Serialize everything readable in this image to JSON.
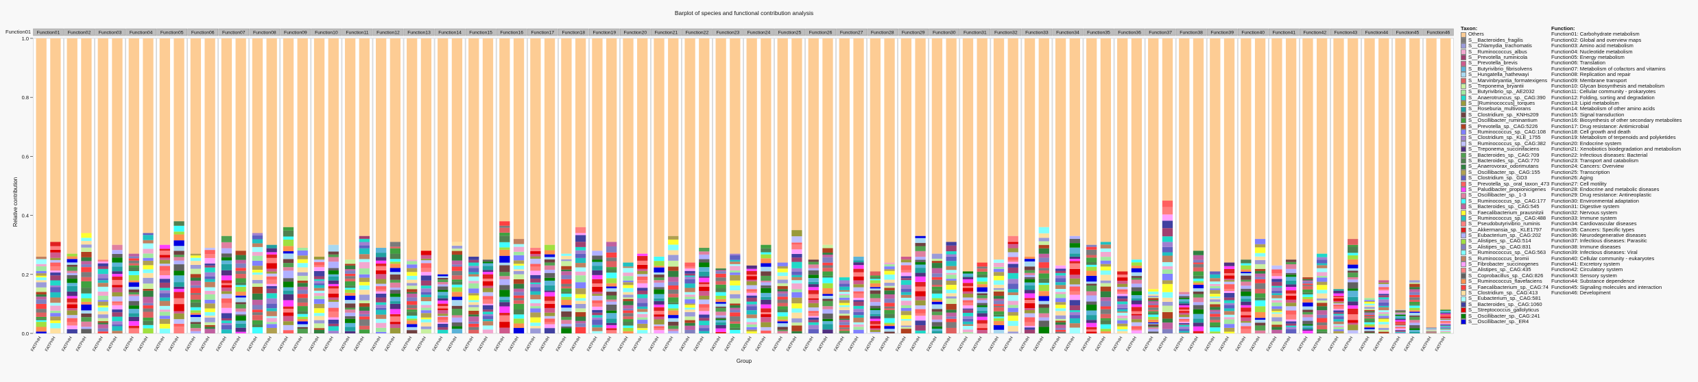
{
  "chart_data": {
    "type": "bar",
    "stacked": true,
    "title": "Barplot of species and functional contribution analysis",
    "xlabel": "Group",
    "ylabel": "Relative contribution",
    "ylim": [
      0,
      1
    ],
    "yticks": [
      "0.0",
      "0.2",
      "0.4",
      "0.6",
      "0.8",
      "1.0"
    ],
    "facet_prefix": "Function",
    "facet_first_label": "Function01",
    "group_labels": [
      "FATPHH",
      "FATPHH"
    ],
    "species_totals": [
      0.26,
      0.31,
      0.27,
      0.34,
      0.25,
      0.3,
      0.27,
      0.34,
      0.3,
      0.38,
      0.27,
      0.29,
      0.33,
      0.28,
      0.34,
      0.3,
      0.36,
      0.29,
      0.26,
      0.3,
      0.25,
      0.33,
      0.29,
      0.31,
      0.25,
      0.28,
      0.2,
      0.31,
      0.26,
      0.25,
      0.38,
      0.32,
      0.29,
      0.3,
      0.27,
      0.36,
      0.28,
      0.31,
      0.24,
      0.27,
      0.26,
      0.33,
      0.24,
      0.29,
      0.22,
      0.27,
      0.23,
      0.3,
      0.24,
      0.35,
      0.25,
      0.3,
      0.19,
      0.26,
      0.21,
      0.24,
      0.26,
      0.33,
      0.27,
      0.31,
      0.21,
      0.24,
      0.25,
      0.33,
      0.26,
      0.36,
      0.23,
      0.33,
      0.3,
      0.31,
      0.21,
      0.25,
      0.15,
      0.45,
      0.14,
      0.28,
      0.21,
      0.24,
      0.25,
      0.32,
      0.23,
      0.25,
      0.19,
      0.27,
      0.15,
      0.32,
      0.12,
      0.18,
      0.08,
      0.18,
      0.02,
      0.08,
      0.01,
      0.12,
      0.01,
      0.02
    ],
    "legend_species_title": "Taxon:",
    "legend_species": [
      "Others",
      "S__Bacteroides_fragilis",
      "S__Chlamydia_trachomatis",
      "S__Ruminococcus_albus",
      "S__Prevotella_ruminicola",
      "S__Prevotella_brevis",
      "S__Butyrivibrio_fibrisolvens",
      "S__Hungatella_hathewayi",
      "S__Marvinbryantia_formatexigens",
      "S__Treponema_bryantii",
      "S__Butyrivibrio_sp._AE2032",
      "S__Anaerotruncus_sp._CAG:390",
      "S__[Ruminococcus]_torques",
      "S__Roseburia_multivorans",
      "S__Clostridium_sp._KNHs209",
      "S__Oscillibacter_ruminantium",
      "S__Prevotella_sp._CAG:5226",
      "S__Ruminococcus_sp._CAG:108",
      "S__Clostridium_sp._KLE_1755",
      "S__Ruminococcus_sp._CAG:382",
      "S__Treponema_succinifaciens",
      "S__Bacteroides_sp._CAG:709",
      "S__Bacteroides_sp._CAG:770",
      "S__Anaerovorax_odorimutans",
      "S__Oscillibacter_sp._CAG:155",
      "S__Clostridium_sp._GD3",
      "S__Prevotella_sp._oral_taxon_473",
      "S__Paludibacter_propionicigenes",
      "S__Oscillibacter_sp._1-3",
      "S__Ruminococcus_sp._CAG:177",
      "S__Bacteroides_sp._CAG:545",
      "S__Faecalibacterium_prausnitzii",
      "S__Ruminococcus_sp._CAG:488",
      "S__Pseudobutyrivibrio_ruminis",
      "S__Akkermansia_sp._KLE1797",
      "S__Eubacterium_sp._CAG:202",
      "S__Alistipes_sp._CAG:514",
      "S__Alistipes_sp._CAG:831",
      "S__Ruminococcus_sp._CAG:563",
      "S__Ruminococcus_bromii",
      "S__Fibrobacter_succinogenes",
      "S__Alistipes_sp._CAG:435",
      "S__Coprobacillus_sp._CAG:826",
      "S__Ruminococcus_flavefaciens",
      "S__Faecalibacterium_sp._CAG:74",
      "S__Clostridium_sp._CAG:413",
      "S__Eubacterium_sp._CAG:581",
      "S__Bacteroides_sp._CAG:1060",
      "S__Streptococcus_gallolyticus",
      "S__Oscillibacter_sp._CAG:241",
      "S__Oscillibacter_sp._ER4"
    ],
    "legend_species_colors": [
      "#fdcc94",
      "#7b7b7b",
      "#9b9bd8",
      "#f2a8d0",
      "#a04070",
      "#ce5a8c",
      "#5bb3d8",
      "#a8d8f0",
      "#e06060",
      "#c8f0a0",
      "#a0e8a0",
      "#20d8c8",
      "#9a9a3a",
      "#20a0a0",
      "#704040",
      "#40a040",
      "#b04020",
      "#8080ff",
      "#a080d0",
      "#c0c0ff",
      "#503080",
      "#50a050",
      "#508050",
      "#308040",
      "#b0a050",
      "#6060c0",
      "#ff6060",
      "#ff40ff",
      "#e080a0",
      "#40ffff",
      "#c060a0",
      "#ffff30",
      "#20c0c0",
      "#ff7f7f",
      "#e02020",
      "#b0b0ff",
      "#a0e040",
      "#8080c0",
      "#80ffff",
      "#c08060",
      "#ffa0ff",
      "#ff8080",
      "#606060",
      "#ff9050",
      "#ff4040",
      "#ffe0a0",
      "#a0ffff",
      "#4040a0",
      "#e00000",
      "#008000",
      "#0000e0"
    ],
    "legend_function_title": "Function:",
    "legend_functions": [
      "Function01: Carbohydrate metabolism",
      "Function02: Global and overview maps",
      "Function03: Amino acid metabolism",
      "Function04: Nucleotide metabolism",
      "Function05: Energy metabolism",
      "Function06: Translation",
      "Function07: Metabolism of cofactors and vitamins",
      "Function08: Replication and repair",
      "Function09: Membrane transport",
      "Function10: Glycan biosynthesis and metabolism",
      "Function11: Cellular community - prokaryotes",
      "Function12: Folding, sorting and degradation",
      "Function13: Lipid metabolism",
      "Function14: Metabolism of other amino acids",
      "Function15: Signal transduction",
      "Function16: Biosynthesis of other secondary metabolites",
      "Function17: Drug resistance: Antimicrobial",
      "Function18: Cell growth and death",
      "Function19: Metabolism of terpenoids and polyketides",
      "Function20: Endocrine system",
      "Function21: Xenobiotics biodegradation and metabolism",
      "Function22: Infectious diseases: Bacterial",
      "Function23: Transport and catabolism",
      "Function24: Cancers: Overview",
      "Function25: Transcription",
      "Function26: Aging",
      "Function27: Cell motility",
      "Function28: Endocrine and metabolic diseases",
      "Function29: Drug resistance: Antineoplastic",
      "Function30: Environmental adaptation",
      "Function31: Digestive system",
      "Function32: Nervous system",
      "Function33: Immune system",
      "Function34: Cardiovascular diseases",
      "Function35: Cancers: Specific types",
      "Function36: Neurodegenerative diseases",
      "Function37: Infectious diseases: Parasitic",
      "Function38: Immune diseases",
      "Function39: Infectious diseases: Viral",
      "Function40: Cellular community - eukaryotes",
      "Function41: Excretory system",
      "Function42: Circulatory system",
      "Function43: Sensory system",
      "Function44: Substance dependence",
      "Function45: Signaling molecules and interaction",
      "Function46: Development"
    ]
  }
}
